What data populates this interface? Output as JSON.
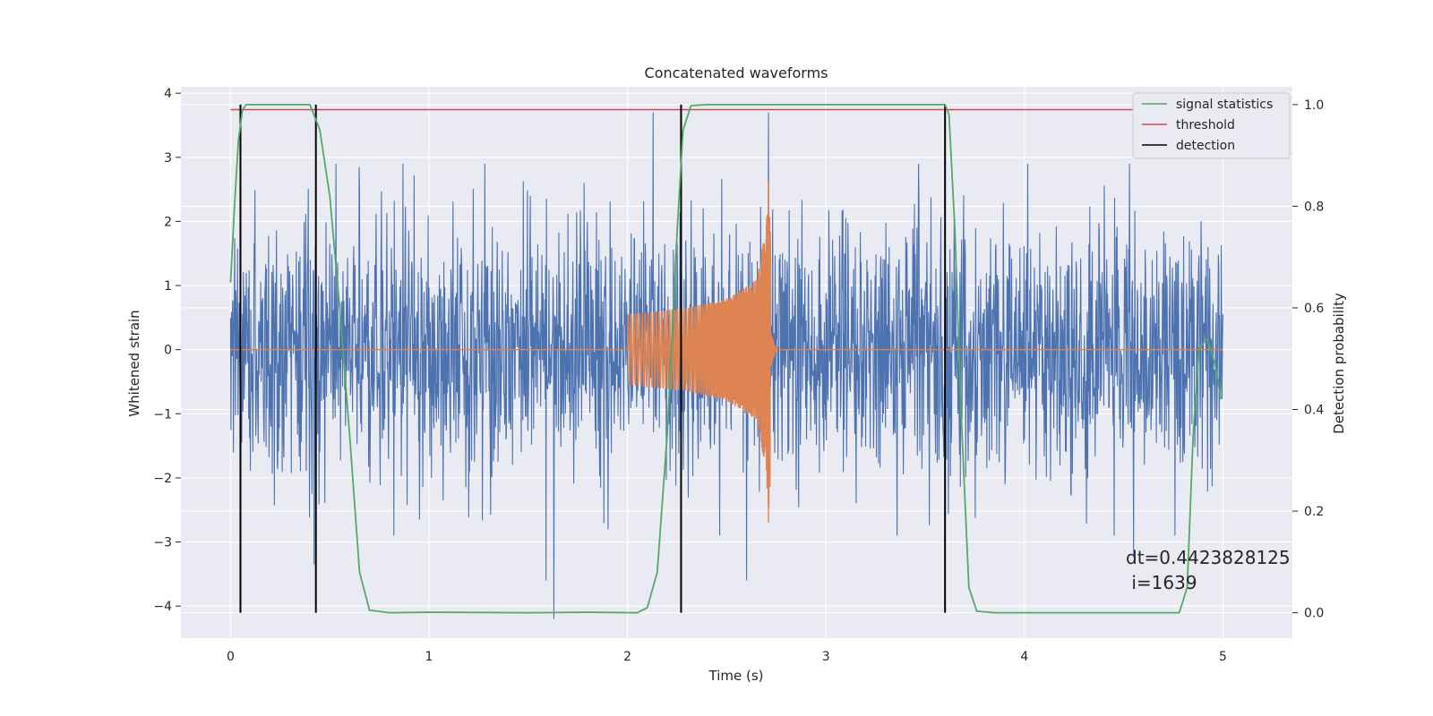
{
  "chart_data": {
    "type": "line",
    "title": "Concatenated waveforms",
    "xlabel": "Time (s)",
    "ylabel": "Whitened strain",
    "ylabel_right": "Detection probability",
    "xlim": [
      -0.25,
      5.35
    ],
    "ylim_left": [
      -4.5,
      4.1
    ],
    "ylim_right": [
      -0.05,
      1.035
    ],
    "x_ticks": [
      0,
      1,
      2,
      3,
      4,
      5
    ],
    "y_ticks_left": [
      -4,
      -3,
      -2,
      -1,
      0,
      1,
      2,
      3,
      4
    ],
    "y_ticks_right": [
      0.0,
      0.2,
      0.4,
      0.6,
      0.8,
      1.0
    ],
    "x_tick_labels": [
      "0",
      "1",
      "2",
      "3",
      "4",
      "5"
    ],
    "y_tick_labels_left": [
      "−4",
      "−3",
      "−2",
      "−1",
      "0",
      "1",
      "2",
      "3",
      "4"
    ],
    "y_tick_labels_right": [
      "0.0",
      "0.2",
      "0.4",
      "0.6",
      "0.8",
      "1.0"
    ],
    "grid": true,
    "legend_position": "top-right",
    "legend": [
      {
        "label": "signal statistics",
        "color": "#55a868"
      },
      {
        "label": "threshold",
        "color": "#c44e52"
      },
      {
        "label": "detection",
        "color": "#000000"
      }
    ],
    "colors": {
      "background": "#eaeaf2",
      "noise": "#4c72b0",
      "injection": "#dd8452",
      "signal_statistics": "#55a868",
      "threshold": "#c44e52",
      "detection": "#000000"
    },
    "series": [
      {
        "name": "whitened strain (noise)",
        "axis": "left",
        "x_range": [
          0,
          5
        ],
        "typical_amplitude": 1.0,
        "peaks": [
          {
            "x": 2.13,
            "y": 3.7
          },
          {
            "x": 2.71,
            "y": 3.7
          },
          {
            "x": 1.63,
            "y": -4.2
          },
          {
            "x": 1.59,
            "y": -3.6
          },
          {
            "x": 2.6,
            "y": -3.6
          },
          {
            "x": 0.42,
            "y": -3.35
          },
          {
            "x": 4.55,
            "y": -3.2
          }
        ]
      },
      {
        "name": "injected waveform",
        "axis": "left",
        "x_range": [
          2.0,
          2.75
        ],
        "points": [
          {
            "x": 2.0,
            "y": 0.55
          },
          {
            "x": 2.3,
            "y": 0.65
          },
          {
            "x": 2.5,
            "y": 0.8
          },
          {
            "x": 2.65,
            "y": 1.1
          },
          {
            "x": 2.7,
            "y": 1.95
          },
          {
            "x": 2.71,
            "y": -2.7
          },
          {
            "x": 2.75,
            "y": 0.0
          }
        ]
      },
      {
        "name": "signal statistics",
        "axis": "right",
        "points": [
          [
            0.0,
            0.65
          ],
          [
            0.02,
            0.8
          ],
          [
            0.04,
            0.93
          ],
          [
            0.06,
            0.99
          ],
          [
            0.08,
            1.0
          ],
          [
            0.4,
            1.0
          ],
          [
            0.45,
            0.95
          ],
          [
            0.5,
            0.82
          ],
          [
            0.55,
            0.6
          ],
          [
            0.6,
            0.35
          ],
          [
            0.65,
            0.08
          ],
          [
            0.7,
            0.005
          ],
          [
            0.8,
            0.0
          ],
          [
            1.0,
            0.001
          ],
          [
            1.5,
            0.0
          ],
          [
            1.8,
            0.001
          ],
          [
            2.05,
            0.0
          ],
          [
            2.1,
            0.01
          ],
          [
            2.15,
            0.08
          ],
          [
            2.2,
            0.35
          ],
          [
            2.25,
            0.75
          ],
          [
            2.28,
            0.95
          ],
          [
            2.32,
            0.998
          ],
          [
            2.4,
            1.0
          ],
          [
            3.6,
            1.0
          ],
          [
            3.62,
            0.98
          ],
          [
            3.65,
            0.75
          ],
          [
            3.68,
            0.4
          ],
          [
            3.72,
            0.05
          ],
          [
            3.76,
            0.003
          ],
          [
            3.85,
            0.0
          ],
          [
            4.78,
            0.0
          ],
          [
            4.82,
            0.05
          ],
          [
            4.85,
            0.35
          ],
          [
            4.88,
            0.52
          ],
          [
            4.92,
            0.54
          ],
          [
            4.96,
            0.49
          ],
          [
            4.99,
            0.42
          ]
        ]
      },
      {
        "name": "threshold",
        "axis": "right",
        "x_range": [
          0,
          5
        ],
        "y": 0.99
      },
      {
        "name": "detection",
        "axis": "right",
        "x": [
          0.05,
          0.43,
          2.27,
          3.6
        ],
        "y_range": [
          0,
          1.0
        ]
      }
    ],
    "annotation": [
      "dt=0.4423828125",
      " i=1639"
    ]
  }
}
